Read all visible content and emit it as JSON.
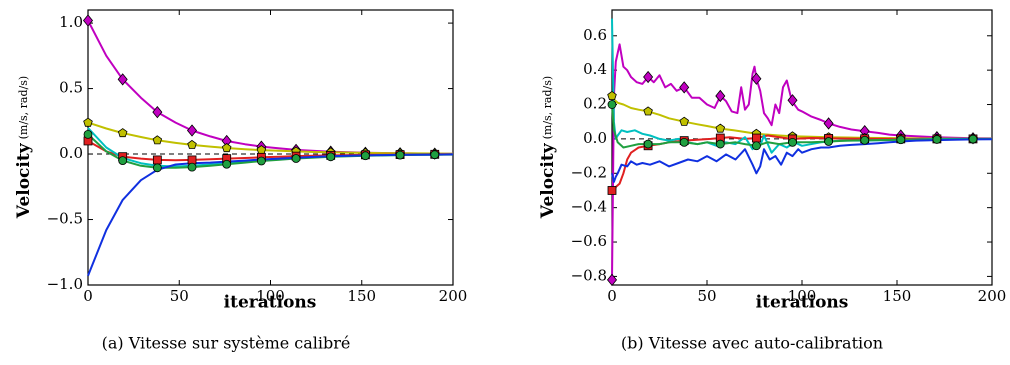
{
  "chart_data": [
    {
      "type": "line",
      "caption": "(a) Vitesse sur système calibré",
      "xlabel": "iterations",
      "ylabel_main": "Velocity",
      "ylabel_unit": "(m/s, rad/s)",
      "xlim": [
        0,
        200
      ],
      "ylim": [
        -1.0,
        1.1
      ],
      "xticks": [
        0,
        50,
        100,
        150,
        200
      ],
      "yticks": [
        -1.0,
        -0.5,
        0.0,
        0.5,
        1.0
      ],
      "xtick_labels": [
        "0",
        "50",
        "100",
        "150",
        "200"
      ],
      "ytick_labels": [
        "−1.0",
        "−0.5",
        "0.0",
        "0.5",
        "1.0"
      ],
      "reference_line": 0,
      "marker_x": [
        0,
        19,
        38,
        57,
        76,
        95,
        114,
        133,
        152,
        171,
        190
      ],
      "series": [
        {
          "color": "#c000c0",
          "marker": "diamond",
          "markers_on": true,
          "x": [
            0,
            10,
            19,
            29,
            38,
            48,
            57,
            67,
            76,
            86,
            95,
            105,
            114,
            124,
            133,
            143,
            152,
            162,
            171,
            181,
            190,
            200
          ],
          "y": [
            1.02,
            0.75,
            0.57,
            0.43,
            0.32,
            0.24,
            0.18,
            0.135,
            0.1,
            0.075,
            0.057,
            0.043,
            0.032,
            0.024,
            0.018,
            0.013,
            0.01,
            0.008,
            0.006,
            0.004,
            0.003,
            0.002
          ]
        },
        {
          "color": "#c0c000",
          "marker": "pentagon",
          "markers_on": true,
          "x": [
            0,
            10,
            19,
            29,
            38,
            48,
            57,
            67,
            76,
            86,
            95,
            105,
            114,
            124,
            133,
            143,
            152,
            162,
            171,
            181,
            190,
            200
          ],
          "y": [
            0.24,
            0.195,
            0.16,
            0.13,
            0.105,
            0.085,
            0.07,
            0.057,
            0.046,
            0.037,
            0.03,
            0.025,
            0.02,
            0.016,
            0.013,
            0.011,
            0.009,
            0.007,
            0.006,
            0.005,
            0.004,
            0.003
          ]
        },
        {
          "color": "#e02020",
          "marker": "square",
          "markers_on": true,
          "x": [
            0,
            10,
            19,
            29,
            38,
            48,
            57,
            67,
            76,
            86,
            95,
            105,
            114,
            124,
            133,
            143,
            152,
            162,
            171,
            181,
            190,
            200
          ],
          "y": [
            0.1,
            0.02,
            -0.02,
            -0.035,
            -0.045,
            -0.048,
            -0.045,
            -0.04,
            -0.035,
            -0.03,
            -0.025,
            -0.02,
            -0.016,
            -0.013,
            -0.01,
            -0.008,
            -0.006,
            -0.005,
            -0.004,
            -0.003,
            -0.002,
            -0.002
          ]
        },
        {
          "color": "#00c0c0",
          "marker": "none",
          "markers_on": false,
          "x": [
            0,
            10,
            19,
            29,
            38,
            48,
            57,
            67,
            76,
            86,
            95,
            105,
            114,
            124,
            133,
            143,
            152,
            162,
            171,
            181,
            190,
            200
          ],
          "y": [
            0.2,
            0.05,
            -0.03,
            -0.07,
            -0.09,
            -0.095,
            -0.09,
            -0.08,
            -0.07,
            -0.058,
            -0.047,
            -0.038,
            -0.03,
            -0.024,
            -0.019,
            -0.015,
            -0.012,
            -0.009,
            -0.007,
            -0.005,
            -0.004,
            -0.003
          ]
        },
        {
          "color": "#20a040",
          "marker": "circle",
          "markers_on": true,
          "x": [
            0,
            10,
            19,
            29,
            38,
            48,
            57,
            67,
            76,
            86,
            95,
            105,
            114,
            124,
            133,
            143,
            152,
            162,
            171,
            181,
            190,
            200
          ],
          "y": [
            0.15,
            0.02,
            -0.05,
            -0.09,
            -0.105,
            -0.105,
            -0.1,
            -0.09,
            -0.078,
            -0.065,
            -0.053,
            -0.043,
            -0.034,
            -0.027,
            -0.021,
            -0.017,
            -0.013,
            -0.01,
            -0.008,
            -0.006,
            -0.005,
            -0.004
          ]
        },
        {
          "color": "#1030e0",
          "marker": "none",
          "markers_on": false,
          "x": [
            0,
            10,
            19,
            29,
            38,
            48,
            57,
            67,
            76,
            86,
            95,
            105,
            114,
            124,
            133,
            143,
            152,
            162,
            171,
            181,
            190,
            200
          ],
          "y": [
            -0.93,
            -0.58,
            -0.35,
            -0.2,
            -0.12,
            -0.08,
            -0.07,
            -0.065,
            -0.058,
            -0.05,
            -0.042,
            -0.035,
            -0.028,
            -0.022,
            -0.017,
            -0.013,
            -0.01,
            -0.008,
            -0.006,
            -0.005,
            -0.004,
            -0.003
          ]
        }
      ]
    },
    {
      "type": "line",
      "caption": "(b) Vitesse avec auto-calibration",
      "xlabel": "iterations",
      "ylabel_main": "Velocity",
      "ylabel_unit": "(m/s, rad/s)",
      "xlim": [
        0,
        200
      ],
      "ylim": [
        -0.85,
        0.75
      ],
      "xticks": [
        0,
        50,
        100,
        150,
        200
      ],
      "yticks": [
        -0.8,
        -0.6,
        -0.4,
        -0.2,
        0.0,
        0.2,
        0.4,
        0.6
      ],
      "xtick_labels": [
        "0",
        "50",
        "100",
        "150",
        "200"
      ],
      "ytick_labels": [
        "−0.8",
        "−0.6",
        "−0.4",
        "−0.2",
        "0.0",
        "0.2",
        "0.4",
        "0.6"
      ],
      "reference_line": 0,
      "marker_x": [
        0,
        19,
        38,
        57,
        76,
        95,
        114,
        133,
        152,
        171,
        190
      ],
      "series": [
        {
          "color": "#c000c0",
          "marker": "diamond",
          "markers_on": true,
          "x": [
            0,
            1,
            2,
            4,
            6,
            8,
            10,
            13,
            16,
            19,
            22,
            25,
            28,
            31,
            34,
            38,
            42,
            46,
            50,
            54,
            57,
            60,
            63,
            66,
            68,
            70,
            72,
            74,
            75,
            76,
            78,
            80,
            82,
            84,
            86,
            88,
            90,
            92,
            94,
            96,
            98,
            100,
            105,
            110,
            114,
            120,
            126,
            133,
            140,
            146,
            152,
            160,
            171,
            180,
            190,
            200
          ],
          "y": [
            -0.82,
            0.25,
            0.45,
            0.55,
            0.42,
            0.4,
            0.36,
            0.33,
            0.32,
            0.36,
            0.33,
            0.37,
            0.3,
            0.32,
            0.28,
            0.3,
            0.24,
            0.24,
            0.2,
            0.18,
            0.25,
            0.22,
            0.16,
            0.15,
            0.3,
            0.17,
            0.2,
            0.38,
            0.42,
            0.35,
            0.28,
            0.15,
            0.12,
            0.08,
            0.2,
            0.15,
            0.3,
            0.34,
            0.25,
            0.2,
            0.17,
            0.16,
            0.13,
            0.11,
            0.09,
            0.07,
            0.055,
            0.045,
            0.035,
            0.025,
            0.02,
            0.015,
            0.01,
            0.007,
            0.004,
            0.003
          ]
        },
        {
          "color": "#c0c000",
          "marker": "pentagon",
          "markers_on": true,
          "x": [
            0,
            1,
            3,
            6,
            10,
            14,
            19,
            25,
            30,
            38,
            45,
            50,
            57,
            64,
            70,
            76,
            82,
            88,
            95,
            105,
            114,
            124,
            133,
            143,
            152,
            162,
            171,
            181,
            190,
            200
          ],
          "y": [
            0.25,
            0.23,
            0.21,
            0.2,
            0.18,
            0.17,
            0.16,
            0.14,
            0.12,
            0.1,
            0.085,
            0.075,
            0.06,
            0.05,
            0.04,
            0.03,
            0.025,
            0.02,
            0.015,
            0.012,
            0.01,
            0.008,
            0.006,
            0.005,
            0.004,
            0.003,
            0.002,
            0.002,
            0.001,
            0.001
          ]
        },
        {
          "color": "#e02020",
          "marker": "square",
          "markers_on": true,
          "x": [
            0,
            1,
            2,
            4,
            6,
            8,
            10,
            14,
            19,
            25,
            30,
            38,
            45,
            52,
            57,
            62,
            70,
            76,
            82,
            88,
            95,
            105,
            114,
            124,
            133,
            152,
            171,
            190,
            200
          ],
          "y": [
            -0.3,
            -0.32,
            -0.28,
            -0.26,
            -0.2,
            -0.12,
            -0.08,
            -0.05,
            -0.04,
            -0.03,
            -0.02,
            -0.01,
            -0.005,
            0.0,
            0.005,
            0.01,
            0.0,
            0.005,
            0.02,
            0.01,
            0.0,
            0.005,
            0.003,
            0.002,
            0.001,
            0.0,
            0.0,
            0.0,
            0.0
          ]
        },
        {
          "color": "#00c0c0",
          "marker": "none",
          "markers_on": false,
          "x": [
            0,
            1,
            2,
            3,
            5,
            8,
            12,
            16,
            20,
            25,
            30,
            35,
            40,
            45,
            50,
            55,
            60,
            65,
            70,
            74,
            76,
            78,
            80,
            84,
            88,
            92,
            96,
            100,
            110,
            120,
            133,
            152,
            171,
            190,
            200
          ],
          "y": [
            0.7,
            0.1,
            0.0,
            0.02,
            0.05,
            0.04,
            0.05,
            0.03,
            0.02,
            0.0,
            -0.01,
            0.0,
            -0.02,
            -0.03,
            -0.02,
            -0.04,
            -0.02,
            -0.03,
            0.01,
            -0.06,
            -0.02,
            -0.04,
            0.02,
            -0.08,
            -0.03,
            -0.05,
            -0.02,
            -0.04,
            -0.02,
            -0.01,
            -0.01,
            -0.005,
            0.0,
            0.0,
            0.0
          ]
        },
        {
          "color": "#20a040",
          "marker": "circle",
          "markers_on": true,
          "x": [
            0,
            1,
            3,
            6,
            10,
            14,
            19,
            25,
            30,
            38,
            45,
            50,
            57,
            65,
            70,
            76,
            82,
            88,
            95,
            105,
            114,
            124,
            133,
            152,
            171,
            190,
            200
          ],
          "y": [
            0.2,
            0.05,
            -0.02,
            -0.05,
            -0.04,
            -0.03,
            -0.03,
            -0.03,
            -0.02,
            -0.02,
            -0.03,
            -0.02,
            -0.03,
            -0.02,
            -0.03,
            -0.04,
            -0.02,
            -0.03,
            -0.02,
            -0.02,
            -0.015,
            -0.01,
            -0.008,
            -0.005,
            -0.003,
            -0.001,
            0.0
          ]
        },
        {
          "color": "#1030e0",
          "marker": "none",
          "markers_on": false,
          "x": [
            0,
            1,
            2,
            3,
            5,
            8,
            10,
            13,
            16,
            20,
            25,
            30,
            35,
            40,
            45,
            50,
            55,
            60,
            65,
            70,
            74,
            76,
            78,
            80,
            83,
            86,
            89,
            92,
            95,
            98,
            100,
            105,
            110,
            114,
            120,
            126,
            133,
            140,
            146,
            152,
            160,
            171,
            180,
            190,
            200
          ],
          "y": [
            -0.2,
            -0.25,
            -0.22,
            -0.2,
            -0.15,
            -0.16,
            -0.13,
            -0.15,
            -0.14,
            -0.15,
            -0.13,
            -0.16,
            -0.14,
            -0.12,
            -0.13,
            -0.1,
            -0.13,
            -0.09,
            -0.12,
            -0.06,
            -0.15,
            -0.2,
            -0.16,
            -0.06,
            -0.12,
            -0.1,
            -0.15,
            -0.08,
            -0.1,
            -0.06,
            -0.08,
            -0.06,
            -0.05,
            -0.05,
            -0.04,
            -0.035,
            -0.03,
            -0.025,
            -0.02,
            -0.015,
            -0.01,
            -0.007,
            -0.005,
            -0.003,
            -0.002
          ]
        }
      ]
    }
  ]
}
